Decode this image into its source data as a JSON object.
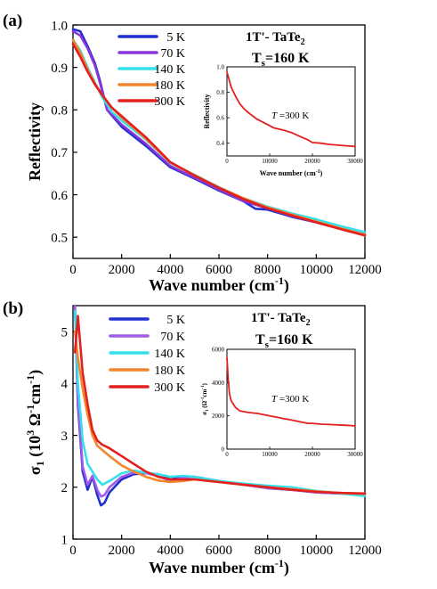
{
  "chart_data": [
    {
      "type": "line",
      "panel_label": "(a)",
      "ylabel": "Reflectivity",
      "xlabel_main": "Wave number (cm",
      "xlabel_sup": "-1",
      "xlabel_tail": ")",
      "xlim": [
        0,
        12000
      ],
      "ylim": [
        0.45,
        1.0
      ],
      "xticks": [
        0,
        2000,
        4000,
        6000,
        8000,
        10000,
        12000
      ],
      "yticks": [
        0.5,
        0.6,
        0.7,
        0.8,
        0.9,
        1.0
      ],
      "ytick_labels": [
        "0.5",
        "0.6",
        "0.7",
        "0.8",
        "0.9",
        "1.0"
      ],
      "material": "1T'- TaTe",
      "material_sub": "2",
      "ts_main": "T",
      "ts_sub": "s",
      "ts_value": "=160 K",
      "legend_position": "top-left",
      "series": [
        {
          "name": "5 K",
          "color": "#1f2fd0",
          "x": [
            0,
            300,
            600,
            900,
            1100,
            1400,
            2000,
            3000,
            4000,
            5000,
            6000,
            7000,
            7500,
            8000,
            9000,
            10000,
            11000,
            12000
          ],
          "y": [
            0.99,
            0.985,
            0.95,
            0.91,
            0.87,
            0.8,
            0.76,
            0.715,
            0.665,
            0.638,
            0.61,
            0.585,
            0.567,
            0.565,
            0.548,
            0.535,
            0.52,
            0.508
          ]
        },
        {
          "name": "70 K",
          "color": "#8a36d8",
          "x": [
            0,
            300,
            600,
            900,
            1100,
            1400,
            2000,
            3000,
            4000,
            5000,
            6000,
            7000,
            8000,
            9000,
            10000,
            11000,
            12000
          ],
          "y": [
            0.985,
            0.975,
            0.945,
            0.905,
            0.865,
            0.8,
            0.765,
            0.72,
            0.668,
            0.64,
            0.612,
            0.585,
            0.568,
            0.55,
            0.535,
            0.52,
            0.507
          ]
        },
        {
          "name": "140 K",
          "color": "#35e0ee",
          "x": [
            0,
            300,
            600,
            900,
            1200,
            1600,
            2000,
            3000,
            4000,
            5000,
            6000,
            7000,
            8000,
            9000,
            10000,
            11000,
            12000
          ],
          "y": [
            0.965,
            0.94,
            0.9,
            0.865,
            0.83,
            0.795,
            0.775,
            0.73,
            0.675,
            0.647,
            0.618,
            0.592,
            0.572,
            0.556,
            0.542,
            0.526,
            0.512
          ]
        },
        {
          "name": "180 K",
          "color": "#f2862a",
          "x": [
            0,
            300,
            600,
            900,
            1200,
            1600,
            2000,
            3000,
            4000,
            5000,
            6000,
            7000,
            8000,
            9000,
            10000,
            11000,
            12000
          ],
          "y": [
            0.965,
            0.935,
            0.895,
            0.862,
            0.835,
            0.805,
            0.782,
            0.732,
            0.676,
            0.646,
            0.617,
            0.592,
            0.57,
            0.553,
            0.537,
            0.521,
            0.506
          ]
        },
        {
          "name": "300 K",
          "color": "#e3201e",
          "x": [
            0,
            300,
            600,
            900,
            1200,
            1600,
            2000,
            3000,
            4000,
            5000,
            6000,
            7000,
            8000,
            9000,
            10000,
            11000,
            12000
          ],
          "y": [
            0.955,
            0.925,
            0.89,
            0.86,
            0.835,
            0.805,
            0.785,
            0.735,
            0.677,
            0.645,
            0.616,
            0.59,
            0.568,
            0.551,
            0.535,
            0.519,
            0.504
          ]
        }
      ],
      "inset": {
        "ylabel": "Reflectivity",
        "xlabel_main": "Wave number (cm",
        "xlabel_sup": "-1",
        "xlabel_tail": ")",
        "annotation_italic": "T",
        "annotation_rest": " =300 K",
        "xlim": [
          0,
          30000
        ],
        "ylim": [
          0.3,
          1.0
        ],
        "xticks": [
          0,
          10000,
          20000,
          30000
        ],
        "yticks": [
          0.4,
          0.6,
          0.8,
          1.0
        ],
        "ytick_labels": [
          "0.4",
          "0.6",
          "0.8",
          "1.0"
        ],
        "color": "#e3201e",
        "x": [
          0,
          500,
          1000,
          2000,
          3000,
          4000,
          5000,
          7000,
          9000,
          11000,
          13000,
          15000,
          17000,
          19000,
          20000,
          22000,
          24000,
          26000,
          28000,
          30000
        ],
        "y": [
          0.96,
          0.9,
          0.84,
          0.77,
          0.71,
          0.67,
          0.64,
          0.59,
          0.555,
          0.52,
          0.505,
          0.485,
          0.455,
          0.425,
          0.405,
          0.4,
          0.39,
          0.385,
          0.38,
          0.375
        ]
      }
    },
    {
      "type": "line",
      "panel_label": "(b)",
      "ylabel_sym": "σ",
      "ylabel_sub": "1",
      "ylabel_rest": " (10",
      "ylabel_sup1": "3",
      "ylabel_rest2": " Ω",
      "ylabel_sup2": "-1",
      "ylabel_rest3": "cm",
      "ylabel_sup3": "-1",
      "ylabel_end": ")",
      "xlabel_main": "Wave number (cm",
      "xlabel_sup": "-1",
      "xlabel_tail": ")",
      "xlim": [
        0,
        12000
      ],
      "ylim": [
        1,
        5.5
      ],
      "xticks": [
        0,
        2000,
        4000,
        6000,
        8000,
        10000,
        12000
      ],
      "yticks": [
        1,
        2,
        3,
        4,
        5
      ],
      "ytick_labels": [
        "1",
        "2",
        "3",
        "4",
        "5"
      ],
      "material": "1T'- TaTe",
      "material_sub": "2",
      "ts_main": "T",
      "ts_sub": "s",
      "ts_value": "=160 K",
      "legend_position": "top-left",
      "series": [
        {
          "name": "5 K",
          "color": "#1f2fd0",
          "x": [
            80,
            200,
            400,
            600,
            800,
            1000,
            1150,
            1300,
            1500,
            2000,
            2500,
            3000,
            3500,
            4000,
            4500,
            5000,
            6000,
            7000,
            8000,
            9000,
            10000,
            11000,
            12000
          ],
          "y": [
            5.5,
            3.6,
            2.3,
            1.95,
            2.2,
            1.85,
            1.65,
            1.7,
            1.9,
            2.15,
            2.25,
            2.27,
            2.25,
            2.15,
            2.2,
            2.2,
            2.12,
            2.05,
            1.98,
            1.95,
            1.9,
            1.88,
            1.87
          ]
        },
        {
          "name": "70 K",
          "color": "#a25be8",
          "x": [
            80,
            200,
            400,
            600,
            800,
            1000,
            1150,
            1300,
            1500,
            2000,
            2500,
            3000,
            3500,
            4000,
            4500,
            5000,
            6000,
            7000,
            8000,
            9000,
            10000,
            11000,
            12000
          ],
          "y": [
            5.5,
            3.7,
            2.4,
            2.05,
            2.22,
            1.95,
            1.82,
            1.85,
            2.0,
            2.2,
            2.28,
            2.27,
            2.22,
            2.12,
            2.18,
            2.2,
            2.12,
            2.05,
            1.98,
            1.95,
            1.9,
            1.88,
            1.87
          ]
        },
        {
          "name": "140 K",
          "color": "#35e0ee",
          "x": [
            80,
            200,
            400,
            600,
            800,
            1000,
            1200,
            1500,
            2000,
            2500,
            3000,
            3500,
            4000,
            4500,
            5000,
            6000,
            7000,
            8000,
            9000,
            10000,
            11000,
            12000
          ],
          "y": [
            5.4,
            4.0,
            2.9,
            2.45,
            2.3,
            2.15,
            2.05,
            2.12,
            2.27,
            2.32,
            2.28,
            2.25,
            2.2,
            2.22,
            2.2,
            2.12,
            2.07,
            2.03,
            2.0,
            1.93,
            1.88,
            1.83
          ]
        },
        {
          "name": "180 K",
          "color": "#f2862a",
          "x": [
            80,
            200,
            400,
            600,
            800,
            1000,
            1200,
            1500,
            2000,
            2500,
            3000,
            3500,
            4000,
            4500,
            5000,
            6000,
            7000,
            8000,
            9000,
            10000,
            11000,
            12000
          ],
          "y": [
            5.0,
            4.5,
            3.9,
            3.4,
            3.0,
            2.8,
            2.72,
            2.6,
            2.42,
            2.3,
            2.2,
            2.13,
            2.1,
            2.12,
            2.15,
            2.1,
            2.05,
            2.0,
            1.96,
            1.92,
            1.89,
            1.87
          ]
        },
        {
          "name": "300 K",
          "color": "#e3201e",
          "x": [
            80,
            200,
            400,
            600,
            800,
            1000,
            1200,
            1500,
            2000,
            2500,
            3000,
            3500,
            4000,
            4500,
            5000,
            6000,
            7000,
            8000,
            9000,
            10000,
            11000,
            12000
          ],
          "y": [
            4.6,
            5.3,
            4.2,
            3.6,
            3.1,
            2.9,
            2.82,
            2.75,
            2.6,
            2.45,
            2.3,
            2.2,
            2.15,
            2.15,
            2.15,
            2.1,
            2.05,
            2.0,
            1.95,
            1.91,
            1.89,
            1.88
          ]
        }
      ],
      "inset": {
        "ylabel_sym": "σ",
        "ylabel_sub": "1",
        "ylabel_rest": " (Ω",
        "ylabel_sup1": "-1",
        "ylabel_rest2": "cm",
        "ylabel_sup2": "-1",
        "ylabel_end": ")",
        "annotation_italic": "T",
        "annotation_rest": " =300 K",
        "xlim": [
          0,
          30000
        ],
        "ylim": [
          0,
          6000
        ],
        "xticks": [
          0,
          10000,
          20000,
          30000
        ],
        "yticks": [
          0,
          2000,
          4000,
          6000
        ],
        "ytick_labels": [
          "0",
          "2000",
          "4000",
          "6000"
        ],
        "color": "#e3201e",
        "x": [
          0,
          300,
          600,
          1000,
          1500,
          2000,
          3000,
          4000,
          5000,
          7000,
          9000,
          11000,
          12000,
          13000,
          15000,
          17000,
          19000,
          20000,
          22000,
          24000,
          26000,
          28000,
          30000
        ],
        "y": [
          5500,
          4200,
          3300,
          2900,
          2700,
          2500,
          2300,
          2250,
          2200,
          2150,
          2050,
          1950,
          1900,
          1850,
          1750,
          1650,
          1550,
          1550,
          1500,
          1480,
          1450,
          1430,
          1400
        ]
      }
    }
  ]
}
